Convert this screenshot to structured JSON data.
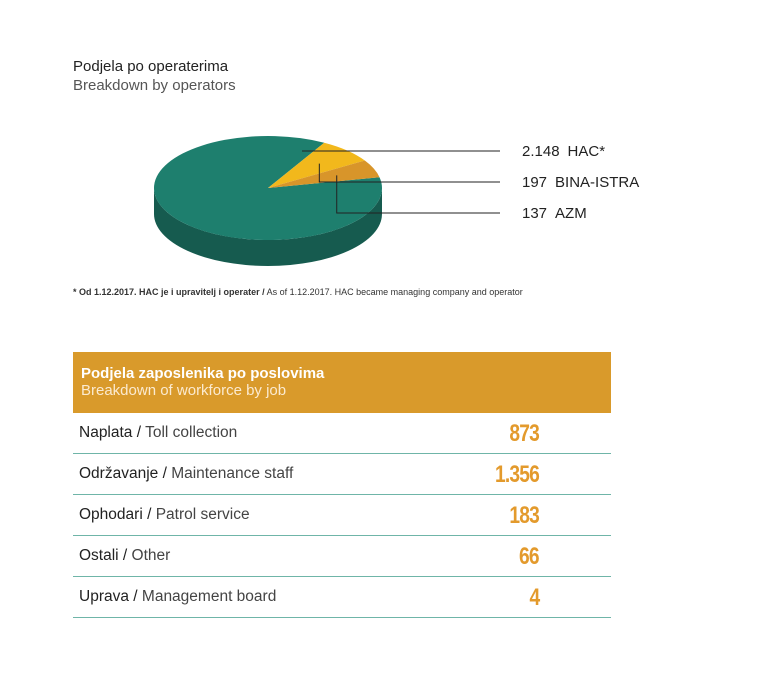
{
  "chart_data": {
    "type": "pie",
    "title": "Podjela po operaterima",
    "subtitle": "Breakdown by operators",
    "categories": [
      "HAC*",
      "BINA-ISTRA",
      "AZM"
    ],
    "values": [
      2148,
      197,
      137
    ],
    "value_labels": [
      "2.148",
      "197",
      "137"
    ],
    "colors": [
      "#1e7f6e",
      "#f2b81c",
      "#d8952a"
    ]
  },
  "footnote": {
    "bold": "* Od 1.12.2017. HAC je i upravitelj i operater /",
    "text": "As of 1.12.2017. HAC became managing company and operator"
  },
  "table": {
    "title": "Podjela zaposlenika po poslovima",
    "subtitle": "Breakdown of workforce by job",
    "rows": [
      {
        "hr": "Naplata /",
        "en": "Toll collection",
        "value": "873"
      },
      {
        "hr": "Održavanje /",
        "en": "Maintenance staff",
        "value": "1.356"
      },
      {
        "hr": "Ophodari /",
        "en": "Patrol service",
        "value": "183"
      },
      {
        "hr": "Ostali /",
        "en": "Other",
        "value": "66"
      },
      {
        "hr": "Uprava /",
        "en": "Management board",
        "value": "4"
      }
    ]
  }
}
